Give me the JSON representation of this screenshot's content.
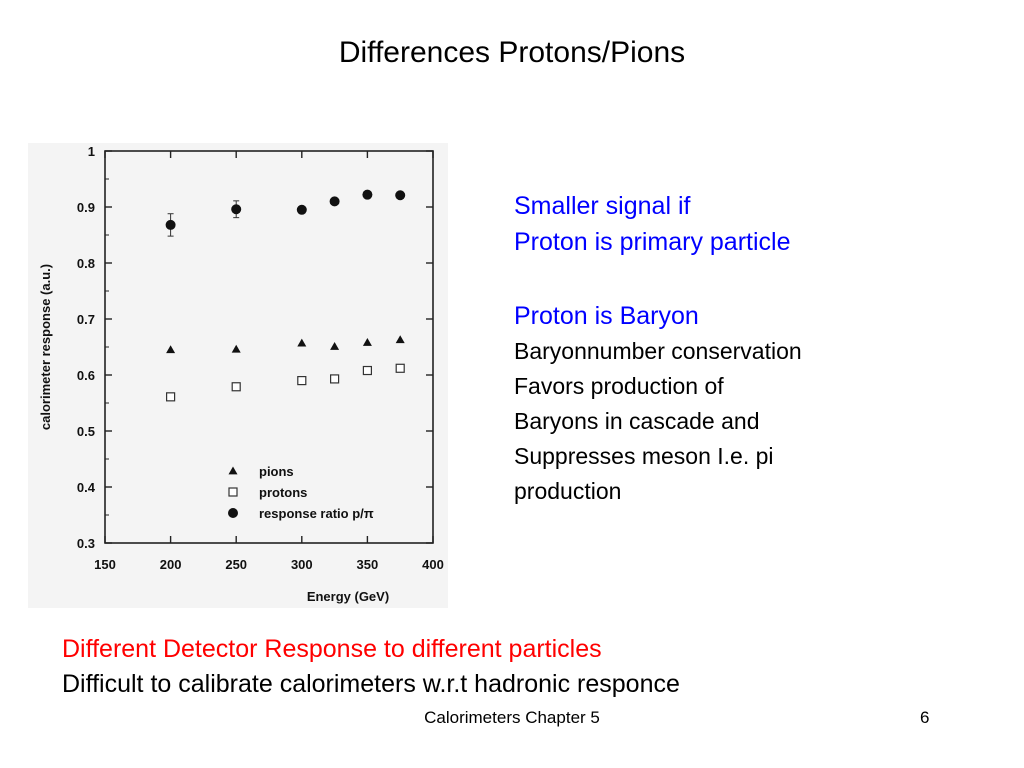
{
  "slide": {
    "title": "Differences Protons/Pions"
  },
  "chart_data": {
    "type": "scatter",
    "title": "",
    "xlabel": "Energy (GeV)",
    "ylabel": "calorimeter response (a.u.)",
    "xlim": [
      150,
      400
    ],
    "ylim": [
      0.3,
      1.0
    ],
    "x_ticks": [
      150,
      200,
      250,
      300,
      350,
      400
    ],
    "y_ticks": [
      0.3,
      0.4,
      0.5,
      0.6,
      0.7,
      0.8,
      0.9,
      1
    ],
    "y_tick_labels": [
      "0.3",
      "0.4",
      "0.5",
      "0.6",
      "0.7",
      "0.8",
      "0.9",
      "1"
    ],
    "grid": false,
    "legend_position": "bottom-right",
    "series": [
      {
        "name": "pions",
        "marker": "triangle",
        "points": [
          [
            200,
            0.645
          ],
          [
            250,
            0.646
          ],
          [
            300,
            0.657
          ],
          [
            325,
            0.651
          ],
          [
            350,
            0.658
          ],
          [
            375,
            0.663
          ]
        ]
      },
      {
        "name": "protons",
        "marker": "open-square",
        "points": [
          [
            200,
            0.561
          ],
          [
            250,
            0.579
          ],
          [
            300,
            0.59
          ],
          [
            325,
            0.593
          ],
          [
            350,
            0.608
          ],
          [
            375,
            0.612
          ]
        ]
      },
      {
        "name": "response  ratio  p/π",
        "marker": "filled-circle",
        "points": [
          [
            200,
            0.868,
            0.02
          ],
          [
            250,
            0.896,
            0.015
          ],
          [
            300,
            0.895,
            0
          ],
          [
            325,
            0.91,
            0
          ],
          [
            350,
            0.922,
            0
          ],
          [
            375,
            0.921,
            0
          ]
        ]
      }
    ]
  },
  "notes": {
    "line1": "Smaller signal if",
    "line2": "Proton is primary particle",
    "line3": "Proton is Baryon",
    "line4": "Baryonnumber conservation",
    "line5": "Favors production of",
    "line6": "Baryons in cascade and",
    "line7": "Suppresses meson I.e. pi",
    "line8": "production"
  },
  "bottom": {
    "red_line": "Different Detector Response to different particles",
    "black_line": "Difficult to calibrate calorimeters w.r.t hadronic responce"
  },
  "footer": {
    "center": "Calorimeters Chapter 5",
    "page": "6"
  },
  "colors": {
    "blue_text": "#0000ff",
    "red_text": "#ff0000"
  }
}
